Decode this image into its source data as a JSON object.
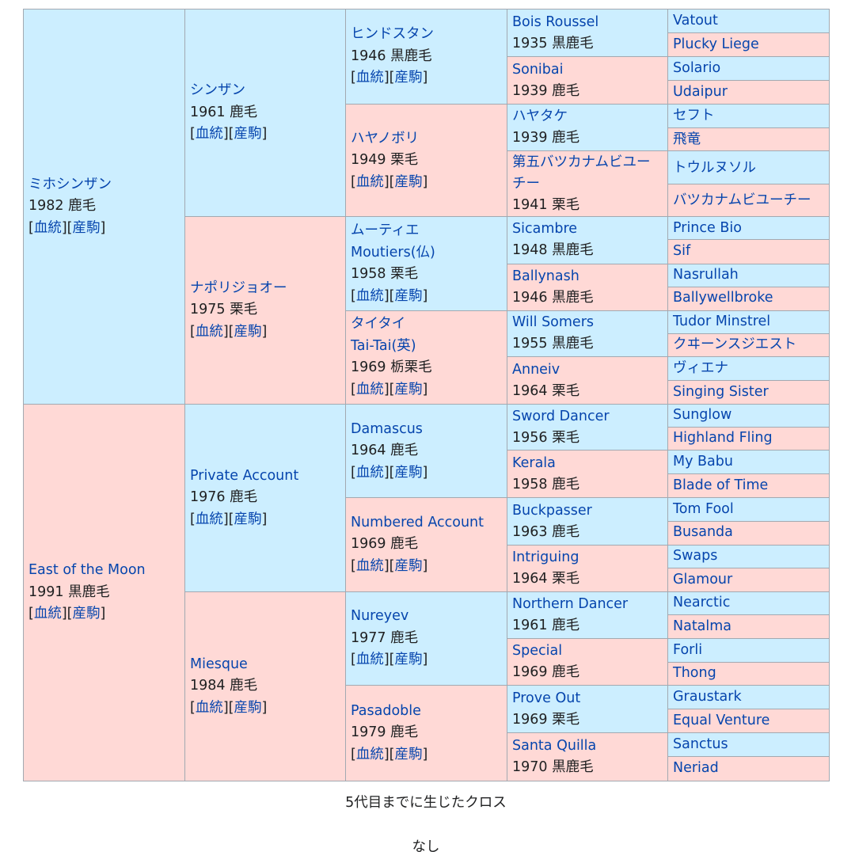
{
  "pedigree": {
    "colors": {
      "male": "#cceeff",
      "female": "#ffd9d6",
      "link": "#0645ad"
    },
    "link_blood": "血統",
    "link_foals": "産駒",
    "gen1": [
      {
        "name": "ミホシンザン",
        "info": "1982 鹿毛"
      },
      {
        "name": "East of the Moon",
        "info": "1991 黒鹿毛"
      }
    ],
    "gen2": [
      {
        "name": "シンザン",
        "info": "1961 鹿毛"
      },
      {
        "name": "ナポリジョオー",
        "info": "1975 栗毛"
      },
      {
        "name": "Private Account",
        "info": "1976 鹿毛"
      },
      {
        "name": "Miesque",
        "info": "1984 鹿毛"
      }
    ],
    "gen3": [
      {
        "name": "ヒンドスタン",
        "info": "1946 黒鹿毛"
      },
      {
        "name": "ハヤノボリ",
        "info": "1949 栗毛"
      },
      {
        "name": "ムーティエ\nMoutiers(仏)",
        "info": "1958 栗毛"
      },
      {
        "name": "タイタイ\nTai-Tai(英)",
        "info": "1969 栃栗毛"
      },
      {
        "name": "Damascus",
        "info": "1964 鹿毛"
      },
      {
        "name": "Numbered Account",
        "info": "1969 鹿毛"
      },
      {
        "name": "Nureyev",
        "info": "1977 鹿毛"
      },
      {
        "name": "Pasadoble",
        "info": "1979 鹿毛"
      }
    ],
    "gen4": [
      {
        "name": "Bois Roussel",
        "info": "1935 黒鹿毛"
      },
      {
        "name": "Sonibai",
        "info": "1939 鹿毛"
      },
      {
        "name": "ハヤタケ",
        "info": "1939 鹿毛"
      },
      {
        "name": "第五バツカナムビユーチー",
        "info": "1941 栗毛"
      },
      {
        "name": "Sicambre",
        "info": "1948 黒鹿毛"
      },
      {
        "name": "Ballynash",
        "info": "1946 黒鹿毛"
      },
      {
        "name": "Will Somers",
        "info": "1955 黒鹿毛"
      },
      {
        "name": "Anneiv",
        "info": "1964 栗毛"
      },
      {
        "name": "Sword Dancer",
        "info": "1956 栗毛"
      },
      {
        "name": "Kerala",
        "info": "1958 鹿毛"
      },
      {
        "name": "Buckpasser",
        "info": "1963 鹿毛"
      },
      {
        "name": "Intriguing",
        "info": "1964 栗毛"
      },
      {
        "name": "Northern Dancer",
        "info": "1961 鹿毛"
      },
      {
        "name": "Special",
        "info": "1969 鹿毛"
      },
      {
        "name": "Prove Out",
        "info": "1969 栗毛"
      },
      {
        "name": "Santa Quilla",
        "info": "1970 黒鹿毛"
      }
    ],
    "gen5": [
      "Vatout",
      "Plucky Liege",
      "Solario",
      "Udaipur",
      "セフト",
      "飛竜",
      "トウルヌソル",
      "バツカナムビユーチー",
      "Prince Bio",
      "Sif",
      "Nasrullah",
      "Ballywellbroke",
      "Tudor Minstrel",
      "クヰーンスジエスト",
      "ヴィエナ",
      "Singing Sister",
      "Sunglow",
      "Highland Fling",
      "My Babu",
      "Blade of Time",
      "Tom Fool",
      "Busanda",
      "Swaps",
      "Glamour",
      "Nearctic",
      "Natalma",
      "Forli",
      "Thong",
      "Graustark",
      "Equal Venture",
      "Sanctus",
      "Neriad"
    ]
  },
  "crosses": {
    "title": "5代目までに生じたクロス",
    "body": "なし"
  }
}
